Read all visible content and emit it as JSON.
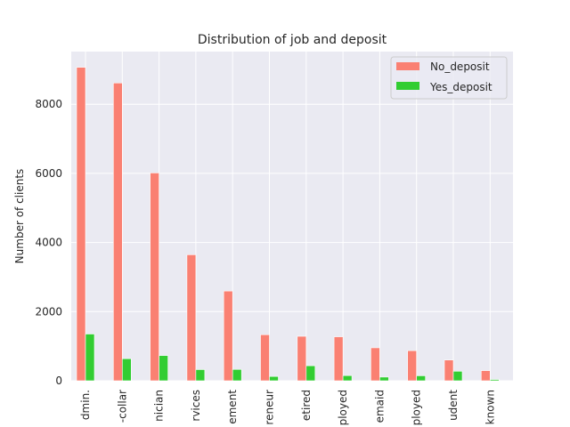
{
  "chart_data": {
    "type": "bar",
    "title": "Distribution of job and deposit",
    "xlabel": "",
    "ylabel": "Number of clients",
    "categories": [
      "admin.",
      "blue-collar",
      "technician",
      "services",
      "management",
      "entrepreneur",
      "retired",
      "self-employed",
      "housemaid",
      "unemployed",
      "student",
      "unknown"
    ],
    "tick_labels_visible": [
      "dmin.",
      "-collar",
      "nician",
      "rvices",
      "ement",
      "reneur",
      "etired",
      "ployed",
      "emaid",
      "ployed",
      "udent",
      "known"
    ],
    "series": [
      {
        "name": "No_deposit",
        "color": "#fa8072",
        "values": [
          9070,
          8616,
          6013,
          3646,
          2596,
          1332,
          1286,
          1272,
          954,
          870,
          600,
          293
        ]
      },
      {
        "name": "Yes_deposit",
        "color": "#32cd32",
        "values": [
          1352,
          638,
          730,
          323,
          328,
          124,
          434,
          149,
          106,
          144,
          275,
          37
        ]
      }
    ],
    "yticks": [
      0,
      2000,
      4000,
      6000,
      8000
    ],
    "ylim": [
      0,
      9524
    ],
    "grid": true,
    "legend_position": "top-right"
  }
}
